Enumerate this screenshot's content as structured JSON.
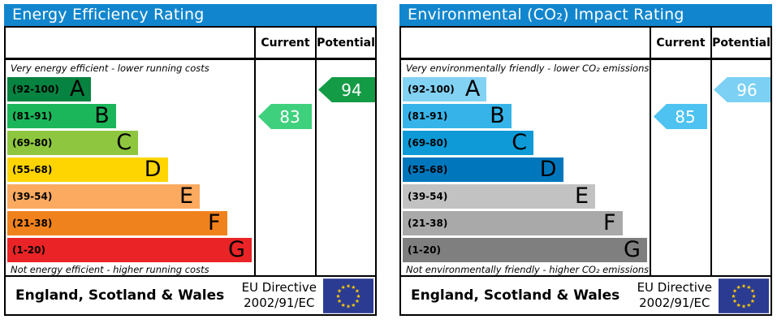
{
  "accent": {
    "header_blue": "#1186ce",
    "border_black": "#000000",
    "eu_flag_blue": "#2b3b92",
    "eu_star_yellow": "#ffcc00"
  },
  "panels": [
    {
      "title": "Energy Efficiency Rating",
      "columns": {
        "current": "Current",
        "potential": "Potential"
      },
      "top_note": "Very energy efficient - lower running costs",
      "bottom_note": "Not energy efficient - higher running costs",
      "bands": [
        {
          "letter": "A",
          "range": "(92-100)",
          "color": "#068340",
          "width_pct": 34
        },
        {
          "letter": "B",
          "range": "(81-91)",
          "color": "#1cb65a",
          "width_pct": 44
        },
        {
          "letter": "C",
          "range": "(69-80)",
          "color": "#8ec73f",
          "width_pct": 53
        },
        {
          "letter": "D",
          "range": "(55-68)",
          "color": "#fed500",
          "width_pct": 65
        },
        {
          "letter": "E",
          "range": "(39-54)",
          "color": "#fbaa60",
          "width_pct": 78
        },
        {
          "letter": "F",
          "range": "(21-38)",
          "color": "#f0821e",
          "width_pct": 89
        },
        {
          "letter": "G",
          "range": "(1-20)",
          "color": "#ea2426",
          "width_pct": 99
        }
      ],
      "current": {
        "value": "83",
        "band_index": 1,
        "color": "#3fd07e"
      },
      "potential": {
        "value": "94",
        "band_index": 0,
        "color": "#149b46"
      },
      "footer": {
        "region": "England, Scotland & Wales",
        "directive_line1": "EU Directive",
        "directive_line2": "2002/91/EC"
      }
    },
    {
      "title": "Environmental (CO₂) Impact Rating",
      "columns": {
        "current": "Current",
        "potential": "Potential"
      },
      "top_note": "Very environmentally friendly - lower CO₂ emissions",
      "bottom_note": "Not environmentally friendly - higher CO₂ emissions",
      "bands": [
        {
          "letter": "A",
          "range": "(92-100)",
          "color": "#82d2f4",
          "width_pct": 34
        },
        {
          "letter": "B",
          "range": "(81-91)",
          "color": "#36b4e9",
          "width_pct": 44
        },
        {
          "letter": "C",
          "range": "(69-80)",
          "color": "#0d9ad7",
          "width_pct": 53
        },
        {
          "letter": "D",
          "range": "(55-68)",
          "color": "#0077bd",
          "width_pct": 65
        },
        {
          "letter": "E",
          "range": "(39-54)",
          "color": "#c2c2c2",
          "width_pct": 78
        },
        {
          "letter": "F",
          "range": "(21-38)",
          "color": "#a9a9a9",
          "width_pct": 89
        },
        {
          "letter": "G",
          "range": "(1-20)",
          "color": "#7f7f7f",
          "width_pct": 99
        }
      ],
      "current": {
        "value": "85",
        "band_index": 1,
        "color": "#4ec3f1"
      },
      "potential": {
        "value": "96",
        "band_index": 0,
        "color": "#7bd0f4"
      },
      "footer": {
        "region": "England, Scotland & Wales",
        "directive_line1": "EU Directive",
        "directive_line2": "2002/91/EC"
      }
    }
  ],
  "chart_data": [
    {
      "type": "bar",
      "title": "Energy Efficiency Rating",
      "categories": [
        "A (92-100)",
        "B (81-91)",
        "C (69-80)",
        "D (55-68)",
        "E (39-54)",
        "F (21-38)",
        "G (1-20)"
      ],
      "values": [
        34,
        44,
        53,
        65,
        78,
        89,
        99
      ],
      "xlabel": "",
      "ylabel": "",
      "legend_position": "columns-right",
      "series": [
        {
          "name": "Current",
          "value": 83,
          "band": "B"
        },
        {
          "name": "Potential",
          "value": 94,
          "band": "A"
        }
      ],
      "note": "Bar lengths are fixed EPC band widths in % of the rating column; rating scale 1-100"
    },
    {
      "type": "bar",
      "title": "Environmental (CO₂) Impact Rating",
      "categories": [
        "A (92-100)",
        "B (81-91)",
        "C (69-80)",
        "D (55-68)",
        "E (39-54)",
        "F (21-38)",
        "G (1-20)"
      ],
      "values": [
        34,
        44,
        53,
        65,
        78,
        89,
        99
      ],
      "xlabel": "",
      "ylabel": "",
      "legend_position": "columns-right",
      "series": [
        {
          "name": "Current",
          "value": 85,
          "band": "B"
        },
        {
          "name": "Potential",
          "value": 96,
          "band": "A"
        }
      ],
      "note": "Bar lengths are fixed EPC band widths in % of the rating column; rating scale 1-100"
    }
  ]
}
